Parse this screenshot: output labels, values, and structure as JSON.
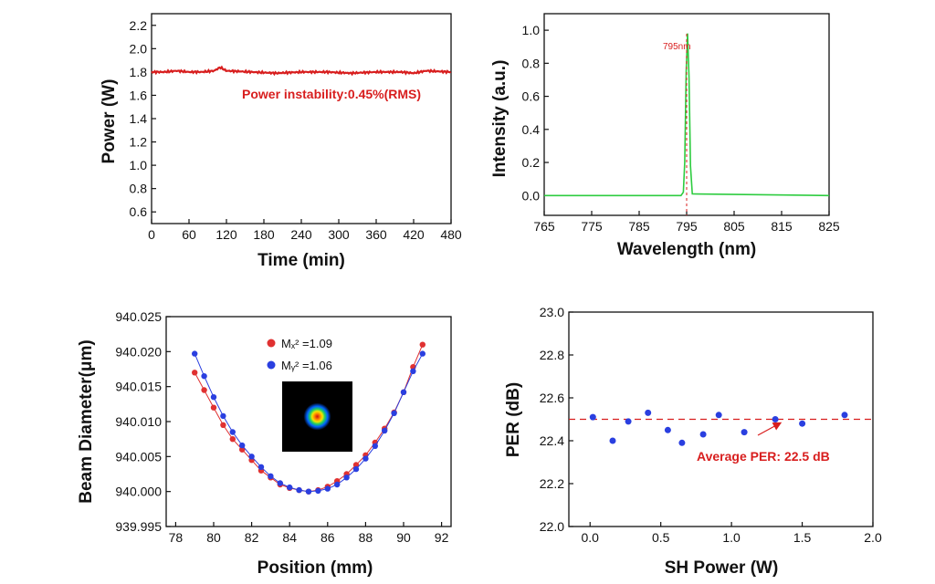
{
  "colors": {
    "red": "#d81e1e",
    "green": "#2ecc40",
    "red_points": "#e03131",
    "blue_points": "#2a3fe0",
    "axis": "#111111"
  },
  "chart_data": [
    {
      "type": "line",
      "xlabel": "Time (min)",
      "ylabel": "Power (W)",
      "xlim": [
        0,
        480
      ],
      "ylim": [
        0.5,
        2.3
      ],
      "xticks": [
        0,
        60,
        120,
        180,
        240,
        300,
        360,
        420,
        480
      ],
      "yticks": [
        0.6,
        0.8,
        1.0,
        1.2,
        1.4,
        1.6,
        1.8,
        2.0,
        2.2
      ],
      "ytick_labels": [
        "0.6",
        "0.8",
        "1.0",
        "1.2",
        "1.4",
        "1.6",
        "1.8",
        "2.0",
        "2.2"
      ],
      "series": [
        {
          "x": [
            0,
            20,
            40,
            60,
            80,
            100,
            110,
            120,
            160,
            200,
            240,
            280,
            320,
            360,
            400,
            420,
            440,
            480
          ],
          "y": [
            1.8,
            1.8,
            1.81,
            1.8,
            1.8,
            1.81,
            1.84,
            1.81,
            1.8,
            1.79,
            1.8,
            1.8,
            1.79,
            1.8,
            1.8,
            1.79,
            1.81,
            1.8
          ]
        }
      ],
      "annotation": "Power instability:0.45%(RMS)"
    },
    {
      "type": "line",
      "xlabel": "Wavelength (nm)",
      "ylabel": "Intensity (a.u.)",
      "xlim": [
        765,
        825
      ],
      "ylim": [
        -0.12,
        1.1
      ],
      "xticks": [
        765,
        775,
        785,
        795,
        805,
        815,
        825
      ],
      "yticks": [
        0.0,
        0.2,
        0.4,
        0.6,
        0.8,
        1.0
      ],
      "ytick_labels": [
        "0.0",
        "0.2",
        "0.4",
        "0.6",
        "0.8",
        "1.0"
      ],
      "series": [
        {
          "x": [
            765,
            793.8,
            794.3,
            794.6,
            794.9,
            795.2,
            795.5,
            795.8,
            796.2,
            825
          ],
          "y": [
            0.0,
            0.0,
            0.02,
            0.2,
            0.75,
            0.98,
            0.72,
            0.18,
            0.01,
            0.0
          ]
        }
      ],
      "peak_x": 795,
      "annotation": "795nm"
    },
    {
      "type": "scatter",
      "xlabel": "Position (mm)",
      "ylabel": "Beam Diameter(μm)",
      "xlim": [
        77.5,
        92.5
      ],
      "ylim": [
        939.995,
        940.025
      ],
      "xticks": [
        78,
        80,
        82,
        84,
        86,
        88,
        90,
        92
      ],
      "yticks": [
        939.995,
        940.0,
        940.005,
        940.01,
        940.015,
        940.02,
        940.025
      ],
      "ytick_labels": [
        "939.995",
        "940.000",
        "940.005",
        "940.010",
        "940.015",
        "940.020",
        "940.025"
      ],
      "legend_position": "top",
      "series": [
        {
          "name": "Mₓ² =1.09",
          "x": [
            79,
            79.5,
            80,
            80.5,
            81,
            81.5,
            82,
            82.5,
            83,
            83.5,
            84,
            84.5,
            85,
            85.5,
            86,
            86.5,
            87,
            87.5,
            88,
            88.5,
            89,
            89.5,
            90,
            90.5,
            91
          ],
          "y": [
            940.017,
            940.0145,
            940.012,
            940.0095,
            940.0075,
            940.006,
            940.0045,
            940.003,
            940.002,
            940.001,
            940.0005,
            940.0002,
            940.0,
            940.0002,
            940.0007,
            940.0015,
            940.0025,
            940.0038,
            940.0052,
            940.007,
            940.009,
            940.0113,
            940.0142,
            940.0178,
            940.021
          ]
        },
        {
          "name": "Mᵧ² =1.06",
          "x": [
            79,
            79.5,
            80,
            80.5,
            81,
            81.5,
            82,
            82.5,
            83,
            83.5,
            84,
            84.5,
            85,
            85.5,
            86,
            86.5,
            87,
            87.5,
            88,
            88.5,
            89,
            89.5,
            90,
            90.5,
            91
          ],
          "y": [
            940.0197,
            940.0165,
            940.0135,
            940.0108,
            940.0085,
            940.0066,
            940.005,
            940.0035,
            940.0022,
            940.0012,
            940.0006,
            940.0002,
            940.0,
            940.0001,
            940.0004,
            940.001,
            940.002,
            940.0032,
            940.0047,
            940.0065,
            940.0087,
            940.0112,
            940.0142,
            940.0172,
            940.0197
          ]
        }
      ],
      "inset": "beam-profile"
    },
    {
      "type": "scatter",
      "xlabel": "SH Power (W)",
      "ylabel": "PER (dB)",
      "xlim": [
        -0.15,
        2.0
      ],
      "ylim": [
        22.0,
        23.0
      ],
      "xticks": [
        0.0,
        0.5,
        1.0,
        1.5,
        2.0
      ],
      "xtick_labels": [
        "0.0",
        "0.5",
        "1.0",
        "1.5",
        "2.0"
      ],
      "yticks": [
        22.0,
        22.2,
        22.4,
        22.6,
        22.8,
        23.0
      ],
      "ytick_labels": [
        "22.0",
        "22.2",
        "22.4",
        "22.6",
        "22.8",
        "23.0"
      ],
      "series": [
        {
          "x": [
            0.02,
            0.16,
            0.27,
            0.41,
            0.55,
            0.65,
            0.8,
            0.91,
            1.09,
            1.31,
            1.5,
            1.8
          ],
          "y": [
            22.51,
            22.4,
            22.49,
            22.53,
            22.45,
            22.39,
            22.43,
            22.52,
            22.44,
            22.5,
            22.48,
            22.52
          ]
        }
      ],
      "reference_y": 22.5,
      "annotation": "Average PER: 22.5 dB"
    }
  ]
}
